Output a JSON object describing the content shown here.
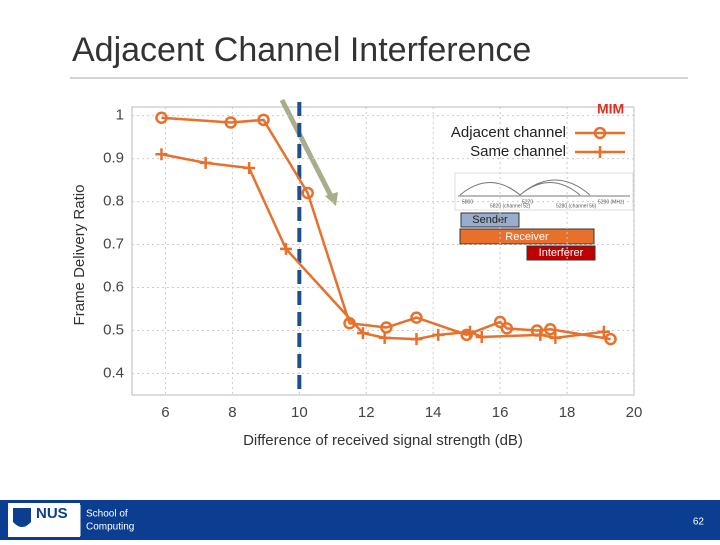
{
  "title": "Adjacent Channel Interference",
  "chart_data": {
    "type": "line",
    "y_label": "Frame Delivery Ratio",
    "x_label": "Difference of received signal strength (dB)",
    "legend_title": "MIM",
    "xlim": [
      5,
      20
    ],
    "xticks": [
      6,
      8,
      10,
      12,
      14,
      16,
      18,
      20
    ],
    "ylim": [
      0.35,
      1.02
    ],
    "yticks": [
      0.4,
      0.5,
      0.6,
      0.7,
      0.8,
      0.9,
      1
    ],
    "grid": true,
    "reference_line_x": 10,
    "reference_line_color": "#1f4e8c",
    "series": [
      {
        "name": "Adjacent channel",
        "color": "#e8702a",
        "marker": "o",
        "x": [
          5.88,
          7.95,
          8.93,
          10.25,
          11.5,
          12.6,
          13.5,
          15.0,
          16.0,
          16.2,
          17.1,
          17.5,
          19.3
        ],
        "values": [
          0.995,
          0.984,
          0.99,
          0.82,
          0.517,
          0.507,
          0.53,
          0.49,
          0.52,
          0.505,
          0.5,
          0.503,
          0.48
        ]
      },
      {
        "name": "Same channel",
        "color": "#e8702a",
        "marker": "+",
        "x": [
          5.88,
          7.2,
          8.5,
          9.6,
          11.9,
          12.55,
          13.5,
          14.15,
          15.1,
          15.45,
          17.2,
          17.65,
          19.1
        ],
        "values": [
          0.91,
          0.89,
          0.878,
          0.69,
          0.494,
          0.483,
          0.48,
          0.49,
          0.497,
          0.485,
          0.49,
          0.483,
          0.497
        ]
      }
    ],
    "inset_labels": [
      "5800",
      "5820 (channel 52)",
      "5270",
      "5280 (channel 56)",
      "5290 (MHz)"
    ],
    "nodes": [
      "Sender",
      "Receiver",
      "Interferer"
    ]
  },
  "footer": {
    "logo": "NUS",
    "school": [
      "School of",
      "Computing"
    ],
    "page": "62"
  }
}
